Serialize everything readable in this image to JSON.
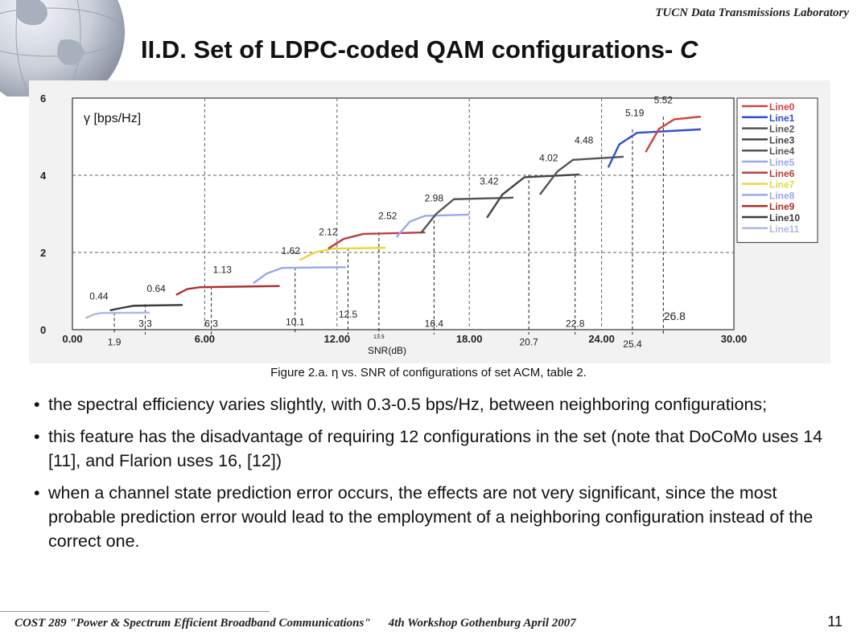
{
  "header": {
    "lab": "TUCN Data Transmissions Laboratory",
    "title": "II.D. Set of LDPC-coded QAM configurations-",
    "title_suffix": "C"
  },
  "chart_data": {
    "type": "line",
    "ylabel": "γ [bps/Hz]",
    "xlabel": "SNR(dB)",
    "xlim": [
      0,
      30
    ],
    "ylim": [
      0,
      6
    ],
    "x_ticks": [
      "0.00",
      "6.00",
      "12.00",
      "18.00",
      "24.00",
      "30.00"
    ],
    "y_ticks": [
      "0",
      "2",
      "4",
      "6"
    ],
    "grid": true,
    "legend_position": "right",
    "legend": [
      "Line0",
      "Line1",
      "Line2",
      "Line3",
      "Line4",
      "Line5",
      "Line6",
      "Line7",
      "Line8",
      "Line9",
      "Line10",
      "Line11"
    ],
    "series": [
      {
        "name": "Line11",
        "color": "#b0b8e0",
        "x": [
          0.6,
          1.0,
          1.3,
          3.5
        ],
        "y": [
          0.3,
          0.4,
          0.43,
          0.44
        ]
      },
      {
        "name": "Line10",
        "color": "#3a3a3a",
        "x": [
          1.7,
          2.2,
          2.8,
          5.0
        ],
        "y": [
          0.5,
          0.56,
          0.62,
          0.64
        ]
      },
      {
        "name": "Line9",
        "color": "#b03030",
        "x": [
          4.7,
          5.2,
          5.8,
          9.4
        ],
        "y": [
          0.9,
          1.05,
          1.1,
          1.13
        ]
      },
      {
        "name": "Line8",
        "color": "#9aa8f0",
        "x": [
          8.2,
          8.8,
          9.5,
          12.4
        ],
        "y": [
          1.2,
          1.45,
          1.6,
          1.62
        ]
      },
      {
        "name": "Line7",
        "color": "#e8d840",
        "x": [
          10.3,
          11.0,
          11.8,
          14.2
        ],
        "y": [
          1.8,
          2.0,
          2.1,
          2.12
        ]
      },
      {
        "name": "Line6",
        "color": "#b84040",
        "x": [
          11.6,
          12.3,
          13.2,
          16.0
        ],
        "y": [
          2.1,
          2.35,
          2.48,
          2.52
        ]
      },
      {
        "name": "Line5",
        "color": "#9aa8f0",
        "x": [
          14.7,
          15.3,
          16.0,
          18.0
        ],
        "y": [
          2.4,
          2.8,
          2.95,
          2.98
        ]
      },
      {
        "name": "Line4",
        "color": "#555555",
        "x": [
          15.8,
          16.5,
          17.3,
          20.0
        ],
        "y": [
          2.5,
          3.0,
          3.38,
          3.42
        ]
      },
      {
        "name": "Line3",
        "color": "#444444",
        "x": [
          18.8,
          19.5,
          20.5,
          23.0
        ],
        "y": [
          2.9,
          3.5,
          3.95,
          4.02
        ]
      },
      {
        "name": "Line2",
        "color": "#555555",
        "x": [
          21.2,
          22.0,
          22.7,
          25.0
        ],
        "y": [
          3.5,
          4.1,
          4.4,
          4.48
        ]
      },
      {
        "name": "Line1",
        "color": "#3050d0",
        "x": [
          24.3,
          24.8,
          25.6,
          28.5
        ],
        "y": [
          4.2,
          4.8,
          5.1,
          5.19
        ]
      },
      {
        "name": "Line0",
        "color": "#d04040",
        "x": [
          26.0,
          26.6,
          27.3,
          28.5
        ],
        "y": [
          4.6,
          5.2,
          5.45,
          5.52
        ]
      }
    ],
    "value_labels": [
      {
        "text": "0.44",
        "x": 1.2,
        "y": 0.78
      },
      {
        "text": "0.64",
        "x": 3.8,
        "y": 0.98
      },
      {
        "text": "1.13",
        "x": 6.8,
        "y": 1.47
      },
      {
        "text": "1.62",
        "x": 9.9,
        "y": 1.96
      },
      {
        "text": "2.12",
        "x": 11.6,
        "y": 2.45
      },
      {
        "text": "2.52",
        "x": 14.3,
        "y": 2.86
      },
      {
        "text": "2.98",
        "x": 16.4,
        "y": 3.32
      },
      {
        "text": "3.42",
        "x": 18.9,
        "y": 3.76
      },
      {
        "text": "4.02",
        "x": 21.6,
        "y": 4.36
      },
      {
        "text": "4.48",
        "x": 23.2,
        "y": 4.82
      },
      {
        "text": "5.19",
        "x": 25.5,
        "y": 5.53
      },
      {
        "text": "5.52",
        "x": 26.8,
        "y": 5.86
      }
    ],
    "threshold_markers": [
      {
        "text": "1.9",
        "x": 1.9,
        "y_top": 0.45,
        "label_y": -0.3
      },
      {
        "text": "3.3",
        "x": 3.3,
        "y_top": 0.66,
        "label_y": 0.18
      },
      {
        "text": "6.3",
        "x": 6.3,
        "y_top": 1.12,
        "label_y": 0.18
      },
      {
        "text": "10.1",
        "x": 10.1,
        "y_top": 1.62,
        "label_y": 0.22
      },
      {
        "text": "12.5",
        "x": 12.5,
        "y_top": 2.12,
        "label_y": 0.42
      },
      {
        "text": "13.9",
        "x": 13.9,
        "y_top": 2.52,
        "label_y": -0.12
      },
      {
        "text": "16.4",
        "x": 16.4,
        "y_top": 2.98,
        "label_y": 0.18
      },
      {
        "text": "20.7",
        "x": 20.7,
        "y_top": 4.02,
        "label_y": -0.3
      },
      {
        "text": "22.8",
        "x": 22.8,
        "y_top": 4.02,
        "label_y": 0.18
      },
      {
        "text": "25.4",
        "x": 25.4,
        "y_top": 5.19,
        "label_y": -0.35
      },
      {
        "text": "26.8",
        "x": 26.8,
        "y_top": 5.52,
        "label_y": 0.35
      }
    ]
  },
  "caption": "Figure 2.a. η vs. SNR of configurations of set ACM, table 2.",
  "bullets": [
    "the spectral efficiency varies slightly, with 0.3-0.5 bps/Hz, between neighboring configurations;",
    "this feature has the disadvantage of requiring 12 configurations in the set (note that DoCoMo uses 14 [11], and Flarion uses 16, [12])",
    "when a channel state prediction error occurs, the effects are not very significant, since the most probable prediction error would lead to the employment of a neighboring configuration instead of the correct one."
  ],
  "footer": {
    "left": "COST 289 \"Power & Spectrum Efficient Broadband Communications\"",
    "workshop": "4th Workshop Gothenburg April 2007",
    "page_number": "11"
  }
}
